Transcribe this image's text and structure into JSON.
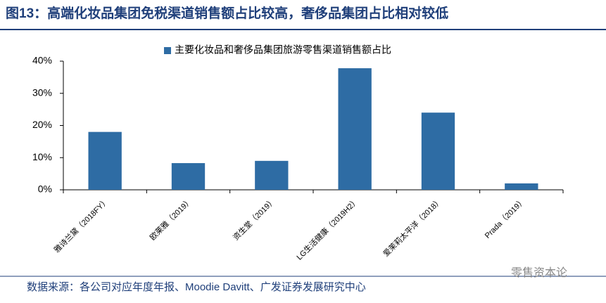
{
  "chart_data": {
    "type": "bar",
    "title": "图13：高端化妆品集团免税渠道销售额占比较高，奢侈品集团占比相对较低",
    "categories": [
      "雅诗兰黛（2018FY）",
      "欧莱雅（2019）",
      "资生堂（2019）",
      "LG生活健康（2019H2）",
      "爱茉莉太平洋（2018）",
      "Prada（2019）"
    ],
    "series": [
      {
        "name": "主要化妆品和奢侈品集团旅游零售渠道销售额占比",
        "color": "#2e6ca4",
        "values": [
          18,
          8.3,
          9,
          37.8,
          24,
          2
        ]
      }
    ],
    "ylim": [
      0,
      40
    ],
    "yticks": [
      {
        "value": 0,
        "label": "0%"
      },
      {
        "value": 10,
        "label": "10%"
      },
      {
        "value": 20,
        "label": "20%"
      },
      {
        "value": 30,
        "label": "30%"
      },
      {
        "value": 40,
        "label": "40%"
      }
    ],
    "grid": false,
    "source": "数据来源：各公司对应年度年报、Moodie Davitt、广发证券发展研究中心",
    "watermark": "零售资本论"
  }
}
